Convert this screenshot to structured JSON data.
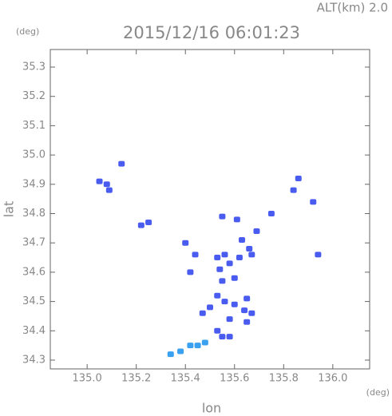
{
  "chart_data": {
    "type": "scatter",
    "title": "2015/12/16 06:01:23",
    "altitude_label": "ALT(km) 2.0",
    "y_unit": "(deg)",
    "x_unit": "(deg)",
    "x_label": "lon",
    "y_label": "lat",
    "xlim": [
      134.85,
      136.15
    ],
    "ylim": [
      34.27,
      35.36
    ],
    "xticks": [
      {
        "value": 135.0,
        "label": "135.0"
      },
      135.2,
      135.4,
      135.6,
      135.8,
      {
        "value": 136.0,
        "label": "136.0"
      }
    ],
    "yticks": [
      34.3,
      34.4,
      34.5,
      34.6,
      34.7,
      34.8,
      34.9,
      {
        "value": 35.0,
        "label": "35.0"
      },
      35.1,
      35.2,
      35.3
    ],
    "series": [
      {
        "color": "#4a5cf0",
        "x": [
          135.05,
          135.08,
          135.09,
          135.14,
          135.22,
          135.25,
          135.53,
          135.56,
          135.62,
          135.66,
          135.54,
          135.58,
          135.55,
          135.6,
          135.53,
          135.56,
          135.6,
          135.65,
          135.64,
          135.67,
          135.65,
          135.58,
          135.5,
          135.47,
          135.53,
          135.55,
          135.58,
          135.42,
          135.44,
          135.4,
          135.63,
          135.67,
          135.61,
          135.75,
          135.84,
          135.86,
          135.92,
          135.94,
          135.55,
          135.69
        ],
        "y": [
          34.91,
          34.9,
          34.88,
          34.97,
          34.76,
          34.77,
          34.65,
          34.66,
          34.65,
          34.68,
          34.61,
          34.63,
          34.57,
          34.58,
          34.52,
          34.5,
          34.49,
          34.51,
          34.47,
          34.46,
          34.43,
          34.44,
          34.48,
          34.46,
          34.4,
          34.38,
          34.38,
          34.6,
          34.66,
          34.7,
          34.71,
          34.66,
          34.78,
          34.8,
          34.88,
          34.92,
          34.84,
          34.66,
          34.79,
          34.74
        ]
      },
      {
        "color": "#3aa0f0",
        "x": [
          135.34,
          135.38,
          135.42,
          135.45,
          135.48
        ],
        "y": [
          34.32,
          34.33,
          34.35,
          34.35,
          34.36
        ]
      }
    ]
  }
}
